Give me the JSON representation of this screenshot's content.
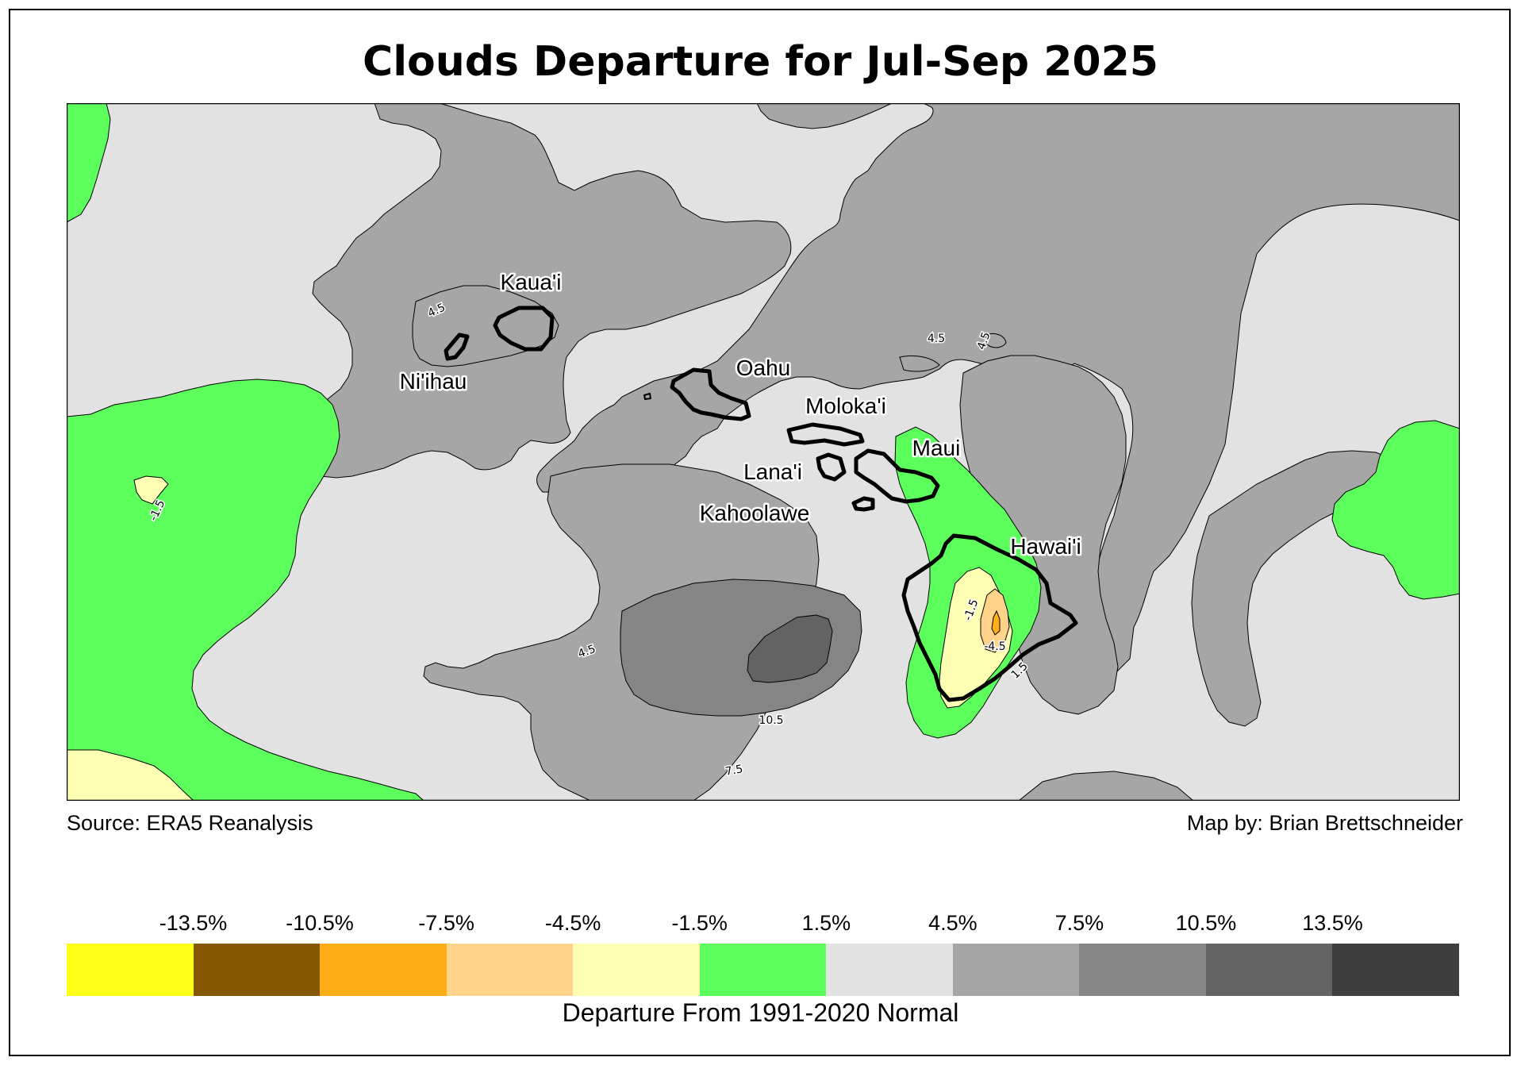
{
  "title": "Clouds Departure for Jul-Sep 2025",
  "source": "Source: ERA5 Reanalysis",
  "credit": "Map by: Brian Brettschneider",
  "map": {
    "island_labels": [
      "Kaua'i",
      "Ni'ihau",
      "Oahu",
      "Moloka'i",
      "Lana'i",
      "Kahoolawe",
      "Maui",
      "Hawai'i"
    ],
    "contour_labels": [
      "-1.5",
      "-1.5",
      "-4.5",
      "1.5",
      "4.5",
      "4.5",
      "4.5",
      "4.5",
      "7.5",
      "10.5"
    ],
    "colors": {
      "background": "#e2e2e2",
      "positive_4_5": "#a6a6a6",
      "positive_7_5": "#858585",
      "positive_10_5": "#636363",
      "negative_1_5": "#5dff5d",
      "negative_4_5": "#ffffb3",
      "negative_7_5": "#ffd38a",
      "negative_10_5": "#ffae17",
      "coastline": "#000000"
    }
  },
  "legend": {
    "title": "Departure From 1991-2020 Normal",
    "ticks": [
      "-13.5%",
      "-10.5%",
      "-7.5%",
      "-4.5%",
      "-1.5%",
      "1.5%",
      "4.5%",
      "7.5%",
      "10.5%",
      "13.5%"
    ],
    "colors": [
      "#ffff17",
      "#855800",
      "#ffae17",
      "#ffd38a",
      "#ffffb3",
      "#5dff5d",
      "#e2e2e2",
      "#a6a6a6",
      "#858585",
      "#636363",
      "#3e3e3e"
    ]
  }
}
